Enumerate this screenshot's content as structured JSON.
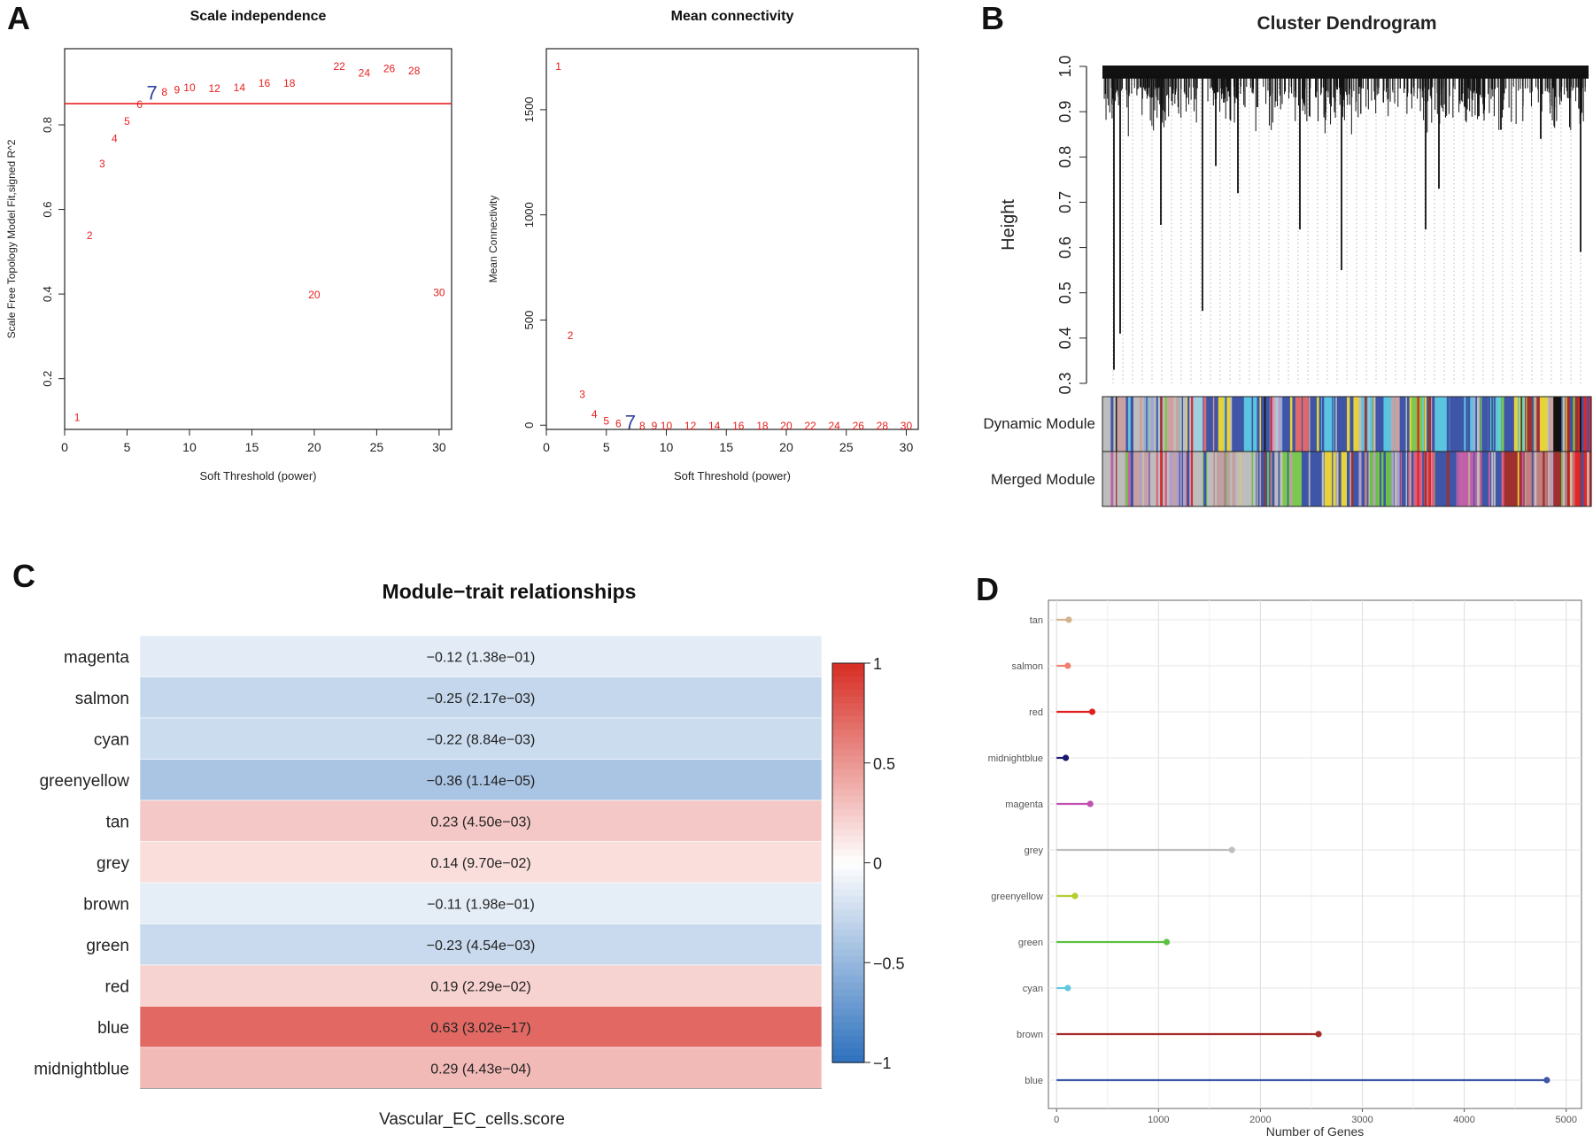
{
  "panels": {
    "a": "A",
    "b": "B",
    "c": "C",
    "d": "D"
  },
  "chart_data": [
    {
      "id": "scale-independence",
      "type": "scatter",
      "title": "Scale independence",
      "xlabel": "Soft Threshold (power)",
      "ylabel": "Scale Free Topology Model Fit,signed R^2",
      "xlim": [
        0,
        31
      ],
      "ylim": [
        0.08,
        0.98
      ],
      "xticks": [
        0,
        5,
        10,
        15,
        20,
        25,
        30
      ],
      "yticks": [
        0.2,
        0.4,
        0.6,
        0.8
      ],
      "hline": 0.85,
      "hline_color": "#e8201f",
      "point_color": "#e8201f",
      "highlight_color": "#3340a0",
      "highlight_power": 7,
      "points": [
        {
          "x": 1,
          "y": 0.11,
          "label": "1"
        },
        {
          "x": 2,
          "y": 0.54,
          "label": "2"
        },
        {
          "x": 3,
          "y": 0.71,
          "label": "3"
        },
        {
          "x": 4,
          "y": 0.77,
          "label": "4"
        },
        {
          "x": 5,
          "y": 0.81,
          "label": "5"
        },
        {
          "x": 6,
          "y": 0.85,
          "label": "6"
        },
        {
          "x": 7,
          "y": 0.87,
          "label": "7"
        },
        {
          "x": 8,
          "y": 0.88,
          "label": "8"
        },
        {
          "x": 9,
          "y": 0.885,
          "label": "9"
        },
        {
          "x": 10,
          "y": 0.89,
          "label": "10"
        },
        {
          "x": 12,
          "y": 0.888,
          "label": "12"
        },
        {
          "x": 14,
          "y": 0.89,
          "label": "14"
        },
        {
          "x": 16,
          "y": 0.9,
          "label": "16"
        },
        {
          "x": 18,
          "y": 0.9,
          "label": "18"
        },
        {
          "x": 20,
          "y": 0.4,
          "label": "20"
        },
        {
          "x": 22,
          "y": 0.94,
          "label": "22"
        },
        {
          "x": 24,
          "y": 0.925,
          "label": "24"
        },
        {
          "x": 26,
          "y": 0.935,
          "label": "26"
        },
        {
          "x": 28,
          "y": 0.93,
          "label": "28"
        },
        {
          "x": 30,
          "y": 0.405,
          "label": "30"
        }
      ]
    },
    {
      "id": "mean-connectivity",
      "type": "scatter",
      "title": "Mean connectivity",
      "xlabel": "Soft Threshold (power)",
      "ylabel": "Mean Connectivity",
      "xlim": [
        0,
        31
      ],
      "ylim": [
        -20,
        1790
      ],
      "xticks": [
        0,
        5,
        10,
        15,
        20,
        25,
        30
      ],
      "yticks": [
        0,
        500,
        1000,
        1500
      ],
      "point_color": "#e8201f",
      "highlight_color": "#3340a0",
      "highlight_power": 7,
      "points": [
        {
          "x": 1,
          "y": 1710,
          "label": "1"
        },
        {
          "x": 2,
          "y": 430,
          "label": "2"
        },
        {
          "x": 3,
          "y": 150,
          "label": "3"
        },
        {
          "x": 4,
          "y": 55,
          "label": "4"
        },
        {
          "x": 5,
          "y": 25,
          "label": "5"
        },
        {
          "x": 6,
          "y": 12,
          "label": "6"
        },
        {
          "x": 7,
          "y": 4,
          "label": "7"
        },
        {
          "x": 8,
          "y": 2,
          "label": "8"
        },
        {
          "x": 9,
          "y": 1,
          "label": "9"
        },
        {
          "x": 10,
          "y": 1,
          "label": "10"
        },
        {
          "x": 12,
          "y": 1,
          "label": "12"
        },
        {
          "x": 14,
          "y": 1,
          "label": "14"
        },
        {
          "x": 16,
          "y": 1,
          "label": "16"
        },
        {
          "x": 18,
          "y": 1,
          "label": "18"
        },
        {
          "x": 20,
          "y": 1,
          "label": "20"
        },
        {
          "x": 22,
          "y": 1,
          "label": "22"
        },
        {
          "x": 24,
          "y": 1,
          "label": "24"
        },
        {
          "x": 26,
          "y": 1,
          "label": "26"
        },
        {
          "x": 28,
          "y": 1,
          "label": "28"
        },
        {
          "x": 30,
          "y": 1,
          "label": "30"
        }
      ]
    },
    {
      "id": "cluster-dendrogram",
      "type": "dendrogram",
      "title": "Cluster Dendrogram",
      "ylabel": "Height",
      "ylim": [
        0.3,
        1.0
      ],
      "yticks": [
        "0.3",
        "0.4",
        "0.5",
        "0.6",
        "0.7",
        "0.8",
        "0.9",
        "1.0"
      ],
      "row_labels": [
        "Dynamic Module",
        "Merged Module"
      ],
      "dynamic_colors": [
        "#bdbdbd",
        "#c9a0a0",
        "#bdbdbd",
        "#a0a8d0",
        "#bdbdbd",
        "#d0a0a0",
        "#bdbdbd",
        "#9fd0e0",
        "#3f56a8",
        "#e8d23a",
        "#3f56a8",
        "#5bc4e0",
        "#3f56a8",
        "#e090c0",
        "#3f56a8",
        "#e06a6a",
        "#3f56a8",
        "#5bc4e0",
        "#3f56a8",
        "#e8d23a",
        "#62c0d8",
        "#3f56a8",
        "#5bc4e0",
        "#3f56a8",
        "#7ac850",
        "#3f56a8",
        "#5bc4e0",
        "#3f56a8",
        "#5bc4e0",
        "#3f56a8",
        "#64d0c8",
        "#3f56a8",
        "#e8d23a",
        "#a03030",
        "#e8d23a",
        "#111111",
        "#a03030",
        "#e02828"
      ],
      "merged_colors": [
        "#bdbdbd",
        "#c9a0a0",
        "#bdbdbd",
        "#b0a0c8",
        "#bdbdbd",
        "#c0a0a0",
        "#bdbdbd",
        "#3f56a8",
        "#7ac850",
        "#3f56a8",
        "#e8d23a",
        "#3f56a8",
        "#6cc04a",
        "#3f56a8",
        "#d86080",
        "#3f56a8",
        "#c060a8",
        "#3f56a8",
        "#a03030",
        "#c08080",
        "#a03030",
        "#e02828"
      ]
    },
    {
      "id": "module-trait",
      "type": "heatmap",
      "title": "Module−trait relationships",
      "xlabel": "Vascular_EC_cells.score",
      "colorbar_ticks": [
        "1",
        "0.5",
        "0",
        "−0.5",
        "−1"
      ],
      "rows": [
        {
          "module": "magenta",
          "r": -0.12,
          "label": "−0.12 (1.38e−01)"
        },
        {
          "module": "salmon",
          "r": -0.25,
          "label": "−0.25 (2.17e−03)"
        },
        {
          "module": "cyan",
          "r": -0.22,
          "label": "−0.22 (8.84e−03)"
        },
        {
          "module": "greenyellow",
          "r": -0.36,
          "label": "−0.36 (1.14e−05)"
        },
        {
          "module": "tan",
          "r": 0.23,
          "label": "0.23 (4.50e−03)"
        },
        {
          "module": "grey",
          "r": 0.14,
          "label": "0.14 (9.70e−02)"
        },
        {
          "module": "brown",
          "r": -0.11,
          "label": "−0.11 (1.98e−01)"
        },
        {
          "module": "green",
          "r": -0.23,
          "label": "−0.23 (4.54e−03)"
        },
        {
          "module": "red",
          "r": 0.19,
          "label": "0.19 (2.29e−02)"
        },
        {
          "module": "blue",
          "r": 0.63,
          "label": "0.63 (3.02e−17)"
        },
        {
          "module": "midnightblue",
          "r": 0.29,
          "label": "0.29 (4.43e−04)"
        }
      ]
    },
    {
      "id": "genes-per-module",
      "type": "lollipop",
      "xlabel": "Number of Genes",
      "xlim": [
        -80,
        5150
      ],
      "xticks": [
        0,
        1000,
        2000,
        3000,
        4000,
        5000
      ],
      "rows": [
        {
          "module": "tan",
          "value": 120,
          "color": "#d2b48c"
        },
        {
          "module": "salmon",
          "value": 110,
          "color": "#f08070"
        },
        {
          "module": "red",
          "value": 350,
          "color": "#e02020"
        },
        {
          "module": "midnightblue",
          "value": 90,
          "color": "#191970"
        },
        {
          "module": "magenta",
          "value": 330,
          "color": "#c050b0"
        },
        {
          "module": "grey",
          "value": 1720,
          "color": "#bebebe"
        },
        {
          "module": "greenyellow",
          "value": 180,
          "color": "#b0d030"
        },
        {
          "module": "green",
          "value": 1080,
          "color": "#5cc040"
        },
        {
          "module": "cyan",
          "value": 110,
          "color": "#60c8e0"
        },
        {
          "module": "brown",
          "value": 2570,
          "color": "#a52a2a"
        },
        {
          "module": "blue",
          "value": 4810,
          "color": "#3f56a8"
        }
      ]
    }
  ]
}
